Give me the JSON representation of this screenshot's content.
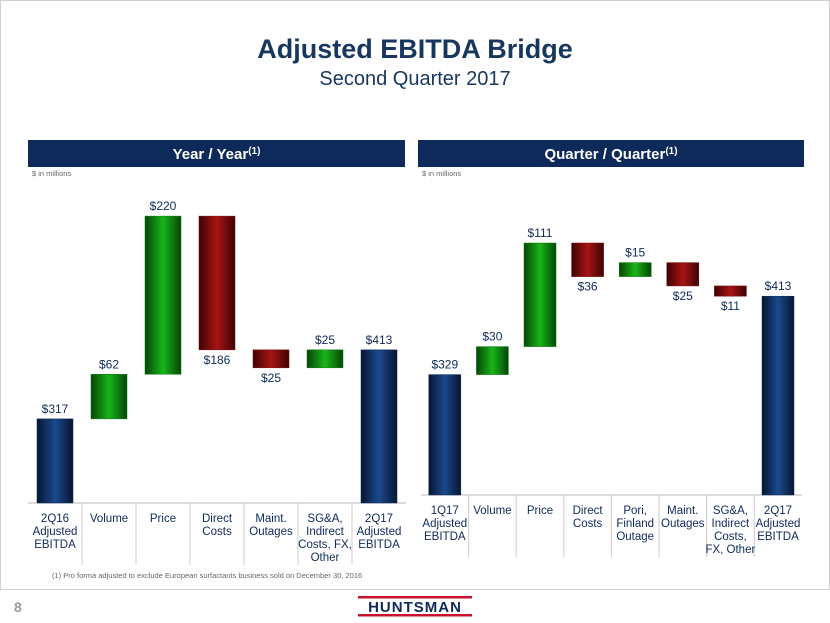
{
  "title": "Adjusted EBITDA Bridge",
  "subtitle": "Second Quarter 2017",
  "footnote": "(1) Pro forma adjusted to exclude European surfactants business sold on December 30, 2016",
  "page_number": "8",
  "logo": "HUNTSMAN",
  "chart_data": [
    {
      "type": "waterfall",
      "title": "Year / Year",
      "title_note": "(1)",
      "units": "$ in millions",
      "categories": [
        "2Q16\nAdjusted\nEBITDA",
        "Volume",
        "Price",
        "Direct\nCosts",
        "Maint.\nOutages",
        "SG&A,\nIndirect\nCosts, FX,\nOther",
        "2Q17\nAdjusted\nEBITDA"
      ],
      "values": [
        317,
        62,
        220,
        -186,
        -25,
        25,
        413
      ],
      "value_labels": [
        "$317",
        "$62",
        "$220",
        "$186",
        "$25",
        "$25",
        "$413"
      ],
      "colors": {
        "total": "#0d2a5a",
        "increase": "#0b7a0b",
        "decrease": "#7a0a0a"
      },
      "ylim": [
        200,
        620
      ]
    },
    {
      "type": "waterfall",
      "title": "Quarter / Quarter",
      "title_note": "(1)",
      "units": "$ in millions",
      "categories": [
        "1Q17\nAdjusted\nEBITDA",
        "Volume",
        "Price",
        "Direct\nCosts",
        "Pori,\nFinland\nOutage",
        "Maint.\nOutages",
        "SG&A,\nIndirect\nCosts,\nFX, Other",
        "2Q17\nAdjusted\nEBITDA"
      ],
      "values": [
        329,
        30,
        111,
        -36,
        15,
        -25,
        -11,
        413
      ],
      "value_labels": [
        "$329",
        "$30",
        "$111",
        "$36",
        "$15",
        "$25",
        "$11",
        "$413"
      ],
      "colors": {
        "total": "#0d2a5a",
        "increase": "#0b7a0b",
        "decrease": "#7a0a0a"
      },
      "ylim": [
        200,
        500
      ]
    }
  ]
}
